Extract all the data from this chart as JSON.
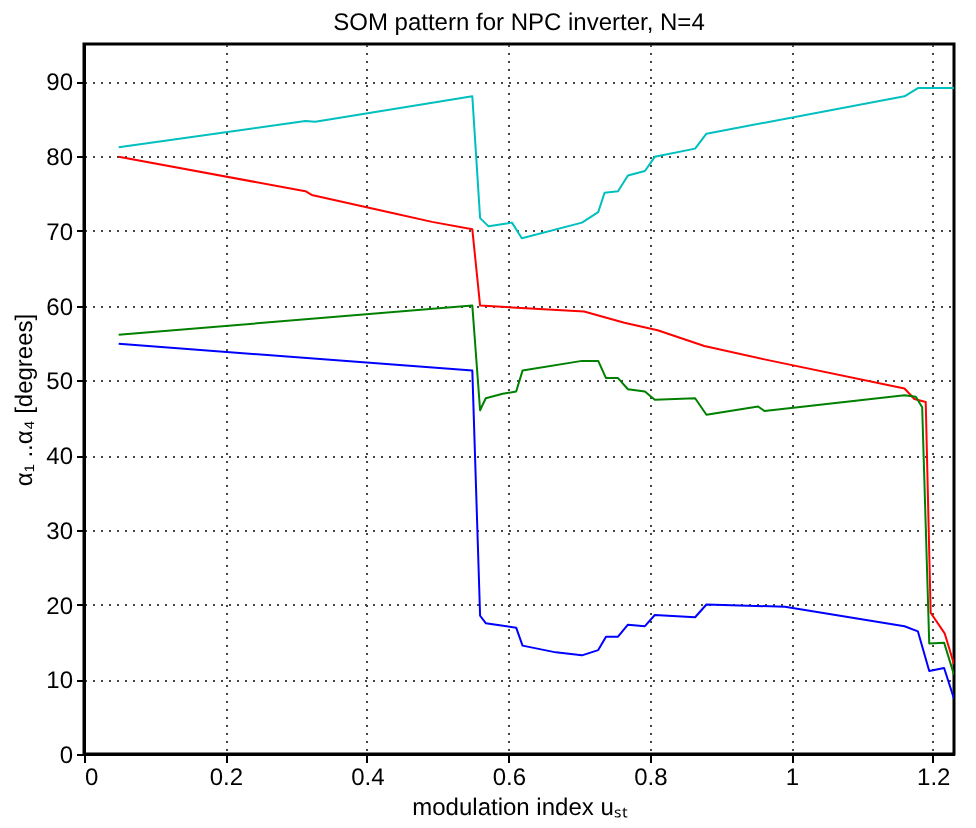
{
  "chart_data": {
    "type": "line",
    "title": "SOM pattern for NPC inverter, N=4",
    "xlabel": "modulation index  uₛₜ",
    "ylabel": "α₁ ..α₄ [degrees]",
    "xlim": [
      0,
      1.23
    ],
    "ylim": [
      0,
      95
    ],
    "xticks": [
      0,
      0.2,
      0.4,
      0.6,
      0.8,
      1,
      1.2
    ],
    "yticks": [
      0,
      10,
      20,
      30,
      40,
      50,
      60,
      70,
      80,
      90
    ],
    "grid": true,
    "line_style": "solid",
    "marker": "none",
    "series": [
      {
        "color": "#00bfbf",
        "x": [
          0.049,
          0.313,
          0.327,
          0.549,
          0.56,
          0.572,
          0.605,
          0.619,
          0.704,
          0.727,
          0.736,
          0.755,
          0.769,
          0.793,
          0.807,
          0.864,
          0.88,
          1.16,
          1.179,
          1.23
        ],
        "values": [
          81.2,
          84.7,
          84.6,
          88.0,
          71.7,
          70.6,
          71.1,
          69.0,
          71.1,
          72.5,
          75.1,
          75.3,
          77.4,
          78.0,
          79.9,
          81.0,
          83.0,
          88.0,
          89.1,
          89.1
        ]
      },
      {
        "color": "#ff0000",
        "x": [
          0.049,
          0.313,
          0.322,
          0.436,
          0.492,
          0.549,
          0.56,
          0.707,
          0.764,
          0.811,
          0.877,
          0.962,
          1.16,
          1.174,
          1.19,
          1.197,
          1.217,
          1.23
        ],
        "values": [
          79.9,
          75.3,
          74.8,
          72.4,
          71.2,
          70.2,
          60.0,
          59.2,
          57.7,
          56.7,
          54.6,
          52.8,
          48.9,
          47.5,
          47.1,
          18.9,
          16.1,
          12.0
        ]
      },
      {
        "color": "#008000",
        "x": [
          0.049,
          0.549,
          0.56,
          0.568,
          0.592,
          0.611,
          0.62,
          0.704,
          0.727,
          0.738,
          0.755,
          0.769,
          0.793,
          0.807,
          0.864,
          0.88,
          0.953,
          0.962,
          1.16,
          1.176,
          1.185,
          1.195,
          1.216,
          1.23
        ],
        "values": [
          56.1,
          60.0,
          46.0,
          47.6,
          48.2,
          48.5,
          51.3,
          52.6,
          52.6,
          50.3,
          50.3,
          48.8,
          48.5,
          47.4,
          47.6,
          45.4,
          46.5,
          45.9,
          48.0,
          47.8,
          46.4,
          14.8,
          14.9,
          10.6
        ]
      },
      {
        "color": "#0000ff",
        "x": [
          0.049,
          0.549,
          0.56,
          0.568,
          0.611,
          0.62,
          0.667,
          0.704,
          0.727,
          0.738,
          0.755,
          0.769,
          0.793,
          0.807,
          0.864,
          0.88,
          0.991,
          1.16,
          1.179,
          1.195,
          1.216,
          1.23
        ],
        "values": [
          54.9,
          51.3,
          18.5,
          17.5,
          16.9,
          14.5,
          13.6,
          13.2,
          13.9,
          15.7,
          15.7,
          17.3,
          17.1,
          18.6,
          18.3,
          20.0,
          19.7,
          17.1,
          16.4,
          11.1,
          11.5,
          7.4
        ]
      }
    ]
  }
}
